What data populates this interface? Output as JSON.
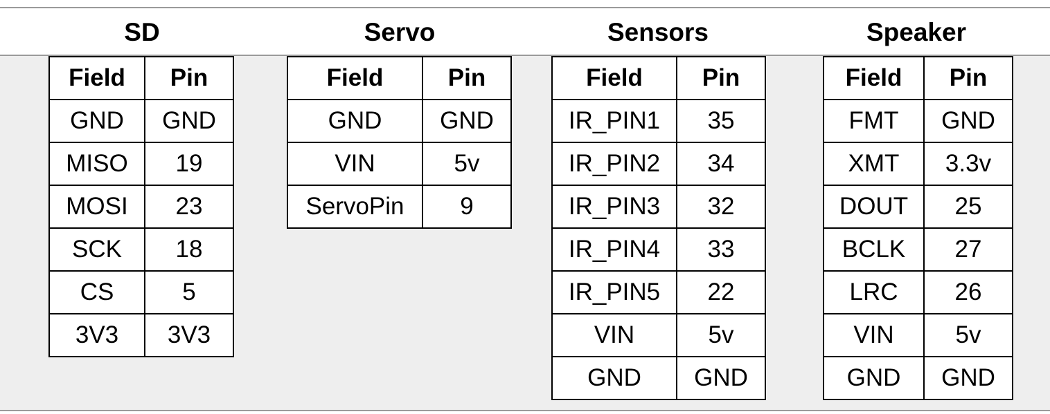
{
  "groups": [
    {
      "title": "SD",
      "headers": [
        "Field",
        "Pin"
      ],
      "rows": [
        [
          "GND",
          "GND"
        ],
        [
          "MISO",
          "19"
        ],
        [
          "MOSI",
          "23"
        ],
        [
          "SCK",
          "18"
        ],
        [
          "CS",
          "5"
        ],
        [
          "3V3",
          "3V3"
        ]
      ]
    },
    {
      "title": "Servo",
      "headers": [
        "Field",
        "Pin"
      ],
      "rows": [
        [
          "GND",
          "GND"
        ],
        [
          "VIN",
          "5v"
        ],
        [
          "ServoPin",
          "9"
        ]
      ]
    },
    {
      "title": "Sensors",
      "headers": [
        "Field",
        "Pin"
      ],
      "rows": [
        [
          "IR_PIN1",
          "35"
        ],
        [
          "IR_PIN2",
          "34"
        ],
        [
          "IR_PIN3",
          "32"
        ],
        [
          "IR_PIN4",
          "33"
        ],
        [
          "IR_PIN5",
          "22"
        ],
        [
          "VIN",
          "5v"
        ],
        [
          "GND",
          "GND"
        ]
      ]
    },
    {
      "title": "Speaker",
      "headers": [
        "Field",
        "Pin"
      ],
      "rows": [
        [
          "FMT",
          "GND"
        ],
        [
          "XMT",
          "3.3v"
        ],
        [
          "DOUT",
          "25"
        ],
        [
          "BCLK",
          "27"
        ],
        [
          "LRC",
          "26"
        ],
        [
          "VIN",
          "5v"
        ],
        [
          "GND",
          "GND"
        ]
      ]
    }
  ]
}
